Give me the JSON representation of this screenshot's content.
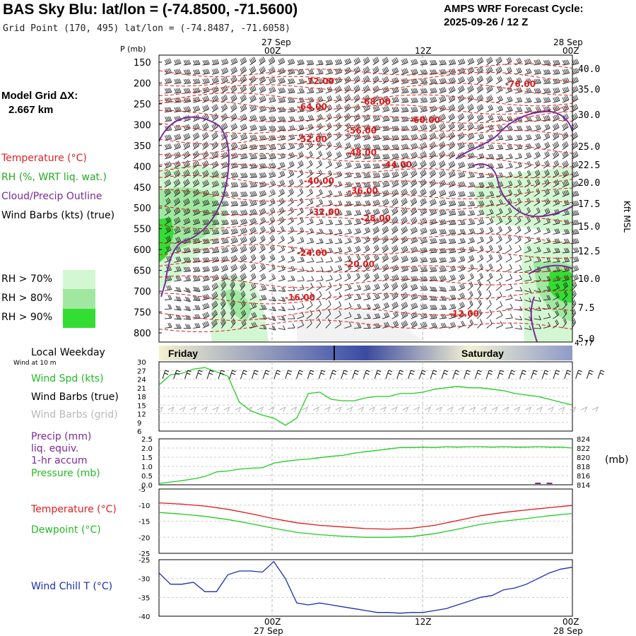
{
  "header": {
    "title": "BAS Sky Blu:  lat/lon = (-74.8500, -71.5600)",
    "subtitle": "Grid Point (170, 495) lat/lon = (-74.8487, -71.6058)",
    "forecast_label": "AMPS WRF Forecast Cycle:",
    "forecast_cycle": "2025-09-26 / 12  Z"
  },
  "legend": {
    "model_grid_label": "Model Grid ΔX:",
    "model_grid_value": "2.667 km",
    "temperature": "Temperature (°C)",
    "rh": "RH (%, WRT liq. wat.)",
    "cloud": "Cloud/Precip Outline",
    "wind_barbs": "Wind Barbs (kts) (true)",
    "rh_levels": [
      "RH > 70%",
      "RH > 80%",
      "RH > 90%"
    ],
    "rh_colors": [
      "#d2f7d2",
      "#a0e8a0",
      "#33dd33"
    ]
  },
  "time_axis": {
    "top_dates": [
      "27 Sep",
      "28 Sep"
    ],
    "ticks": [
      "00Z",
      "12Z",
      "00Z"
    ],
    "bottom_dates": [
      "27 Sep",
      "28 Sep"
    ],
    "local_weekday_label": "Local Weekday",
    "wind_at_10m": "Wind at 10 m",
    "days": [
      "Friday",
      "Saturday"
    ]
  },
  "chart_data": [
    {
      "type": "contour",
      "title": "Vertical cross-section (pressure vs time)",
      "ylabel": "P (mb)",
      "ylabel_right": "Kft MSL",
      "pressure_ticks": [
        150,
        200,
        250,
        300,
        350,
        400,
        450,
        500,
        550,
        600,
        650,
        700,
        750,
        800
      ],
      "height_ticks": [
        "40.0",
        "35.0",
        "30.0",
        "25.0",
        "22.5",
        "20.0",
        "17.5",
        "15.0",
        "12.5",
        "10.0",
        "7.5",
        "5.0"
      ],
      "surface_height": "4.77",
      "temperature_contour_labels": [
        "-72.00",
        "-76.00",
        "-64.00",
        "-68.00",
        "-60.00",
        "-56.00",
        "-52.00",
        "-48.00",
        "-44.00",
        "-40.00",
        "-36.00",
        "-32.00",
        "-28.00",
        "-24.00",
        "-20.00",
        "-16.00",
        "-12.00"
      ]
    },
    {
      "type": "line",
      "title": "Wind Spd (kts)",
      "legend": [
        "Wind Spd (kts)",
        "Wind Barbs (true)",
        "Wind Barbs (grid)"
      ],
      "ylim": [
        6,
        30
      ],
      "yticks": [
        "30",
        "27",
        "24",
        "21",
        "18",
        "15",
        "12",
        "9",
        "6"
      ],
      "x_hours": [
        0,
        1,
        2,
        3,
        4,
        5,
        6,
        7,
        8,
        9,
        10,
        11,
        12,
        13,
        14,
        15,
        16,
        17,
        18,
        19,
        20,
        21,
        22,
        23,
        24,
        25,
        26,
        27,
        28,
        29,
        30,
        31,
        32,
        33,
        34,
        35,
        36
      ],
      "values": [
        22,
        25.5,
        26,
        27.5,
        28,
        26.5,
        25,
        16,
        13,
        11.5,
        10.5,
        8,
        10.5,
        19,
        19.5,
        17,
        16.5,
        16.5,
        17.5,
        18,
        18,
        19,
        19,
        19.5,
        20.5,
        21,
        21.5,
        21,
        21,
        20.5,
        20,
        19,
        18.5,
        18,
        17,
        16,
        15
      ]
    },
    {
      "type": "line",
      "title": "Precip / Pressure",
      "legend": [
        "Precip (mm)",
        "liq. equiv.",
        "1-hr accum",
        "Pressure (mb)"
      ],
      "y_left_ticks": [
        "2.5",
        "2.0",
        "1.5",
        "1.0",
        "0.5",
        "0.0"
      ],
      "y_right_ticks": [
        "824",
        "822",
        "820",
        "818",
        "816",
        "814"
      ],
      "y_right_label": "(mb)",
      "pressure_ylim": [
        814,
        824
      ],
      "x_hours": [
        0,
        1,
        2,
        3,
        4,
        5,
        6,
        7,
        8,
        9,
        10,
        11,
        12,
        13,
        14,
        15,
        16,
        17,
        18,
        19,
        20,
        21,
        22,
        23,
        24,
        25,
        26,
        27,
        28,
        29,
        30,
        31,
        32,
        33,
        34,
        35,
        36
      ],
      "pressure_values": [
        814.3,
        814.6,
        814.9,
        815.3,
        815.8,
        816.8,
        817,
        817.4,
        817.6,
        817.7,
        818.7,
        819.1,
        819.4,
        819.6,
        819.9,
        820.2,
        820.4,
        820.9,
        821.2,
        821.5,
        821.8,
        822.1,
        822.1,
        822.2,
        822.1,
        822.3,
        822.2,
        822.3,
        822.3,
        822.2,
        822.3,
        822.2,
        822.2,
        822.3,
        822.2,
        822.2,
        822
      ],
      "precip_values": [
        0,
        0,
        0,
        0,
        0,
        0,
        0,
        0,
        0,
        0,
        0,
        0,
        0,
        0,
        0,
        0,
        0,
        0,
        0,
        0,
        0,
        0,
        0,
        0,
        0,
        0,
        0,
        0,
        0,
        0,
        0,
        0,
        0,
        0.05,
        0.05,
        0,
        0
      ]
    },
    {
      "type": "line",
      "title": "Temperature / Dewpoint",
      "legend": [
        "Temperature (°C)",
        "Dewpoint (°C)"
      ],
      "ylim": [
        -25,
        -5
      ],
      "yticks": [
        "-5",
        "-10",
        "-15",
        "-20",
        "-25"
      ],
      "x_hours": [
        0,
        2,
        4,
        6,
        8,
        10,
        12,
        14,
        16,
        18,
        20,
        22,
        24,
        26,
        28,
        30,
        32,
        34,
        36
      ],
      "series": [
        {
          "name": "Temperature",
          "values": [
            -9.3,
            -9.7,
            -10.3,
            -11.3,
            -12.7,
            -14.2,
            -15.5,
            -16.3,
            -16.8,
            -17.3,
            -17.5,
            -17.2,
            -16.3,
            -14.8,
            -13.3,
            -12.3,
            -11.5,
            -10.8,
            -10.1
          ]
        },
        {
          "name": "Dewpoint",
          "values": [
            -12.3,
            -12.8,
            -13.5,
            -14.5,
            -15.8,
            -17.2,
            -18.5,
            -19.2,
            -19.7,
            -20,
            -20,
            -19.8,
            -18.9,
            -17.5,
            -16,
            -15,
            -14.2,
            -13.3,
            -12.6
          ]
        }
      ]
    },
    {
      "type": "line",
      "title": "Wind Chill T (°C)",
      "legend": [
        "Wind Chill T (°C)"
      ],
      "ylim": [
        -40,
        -25
      ],
      "yticks": [
        "-25",
        "-30",
        "-35",
        "-40"
      ],
      "x_hours": [
        0,
        1,
        2,
        3,
        4,
        5,
        6,
        7,
        8,
        9,
        10,
        11,
        12,
        13,
        14,
        15,
        16,
        17,
        18,
        19,
        20,
        21,
        22,
        23,
        24,
        25,
        26,
        27,
        28,
        29,
        30,
        31,
        32,
        33,
        34,
        35,
        36
      ],
      "values": [
        -28.5,
        -31.5,
        -31.5,
        -31,
        -33.5,
        -33.5,
        -29,
        -28,
        -28,
        -28.3,
        -25.5,
        -30,
        -36.5,
        -37,
        -36.5,
        -37,
        -37.5,
        -38,
        -38.5,
        -39,
        -39,
        -39.2,
        -39,
        -39,
        -38.5,
        -38,
        -37,
        -36,
        -35,
        -34.5,
        -33,
        -32.5,
        -31.5,
        -30,
        -28.5,
        -27.5,
        -27
      ]
    }
  ]
}
